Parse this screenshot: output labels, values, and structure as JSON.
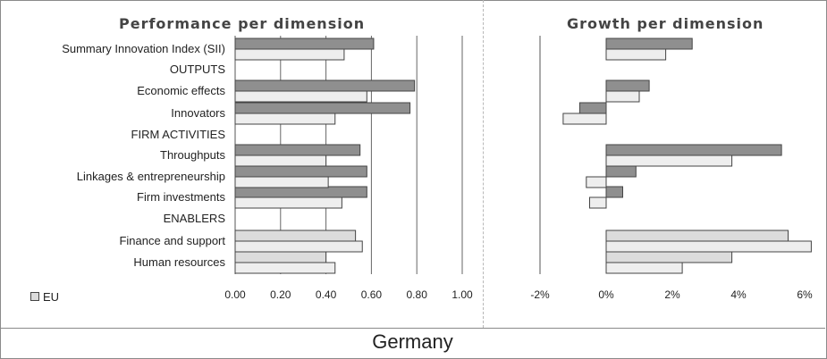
{
  "country": "Germany",
  "legend": {
    "label": "EU"
  },
  "colors": {
    "country_bar": "#8f8f8f",
    "eu_bar": "#eeeeee",
    "highlight_bar": "#dcdcdc",
    "outline": "#444444"
  },
  "chart_data": [
    {
      "type": "bar",
      "orientation": "horizontal",
      "title": "Performance per dimension",
      "categories": [
        "Summary Innovation Index (SII)",
        "OUTPUTS",
        "Economic effects",
        "Innovators",
        "FIRM ACTIVITIES",
        "Throughputs",
        "Linkages & entrepreneurship",
        "Firm investments",
        "ENABLERS",
        "Finance and support",
        "Human resources"
      ],
      "series": [
        {
          "values": [
            0.61,
            null,
            0.79,
            0.77,
            null,
            0.55,
            0.58,
            0.58,
            null,
            0.53,
            0.4
          ]
        },
        {
          "name": "EU",
          "values": [
            0.48,
            null,
            0.58,
            0.44,
            null,
            0.4,
            0.41,
            0.47,
            null,
            0.56,
            0.44
          ]
        }
      ],
      "xlim": [
        0,
        1
      ],
      "xticks": [
        "0.00",
        "0.20",
        "0.40",
        "0.60",
        "0.80",
        "1.00"
      ],
      "tick_values": [
        0,
        0.2,
        0.4,
        0.6,
        0.8,
        1.0
      ],
      "grid": true
    },
    {
      "type": "bar",
      "orientation": "horizontal",
      "title": "Growth per dimension",
      "categories": [
        "Summary Innovation Index (SII)",
        "OUTPUTS",
        "Economic effects",
        "Innovators",
        "FIRM ACTIVITIES",
        "Throughputs",
        "Linkages & entrepreneurship",
        "Firm investments",
        "ENABLERS",
        "Finance and support",
        "Human resources"
      ],
      "series": [
        {
          "values": [
            2.6,
            null,
            1.3,
            -0.8,
            null,
            5.3,
            0.9,
            0.5,
            null,
            5.5,
            3.8
          ]
        },
        {
          "name": "EU",
          "values": [
            1.8,
            null,
            1.0,
            -1.3,
            null,
            3.8,
            -0.6,
            -0.5,
            null,
            6.2,
            2.3
          ]
        }
      ],
      "xlim": [
        -2,
        6
      ],
      "xticks": [
        "-2%",
        "0%",
        "2%",
        "4%",
        "6%"
      ],
      "tick_values": [
        -2,
        0,
        2,
        4,
        6
      ],
      "grid": false
    }
  ]
}
